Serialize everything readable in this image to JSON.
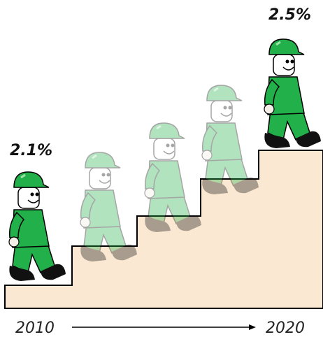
{
  "labels": {
    "start_value": "2.1%",
    "end_value": "2.5%",
    "start_year": "2010",
    "end_year": "2020"
  }
}
